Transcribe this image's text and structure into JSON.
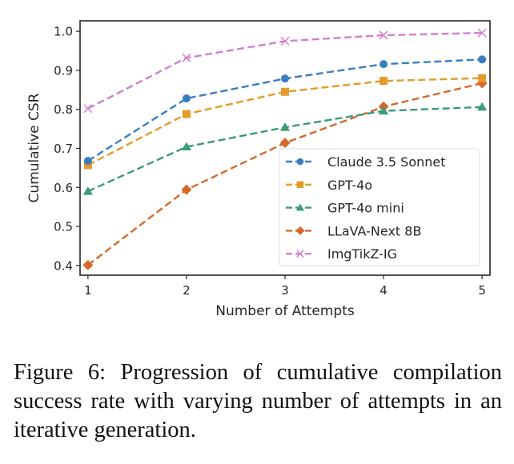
{
  "chart_data": {
    "type": "line",
    "title": "",
    "xlabel": "Number of Attempts",
    "ylabel": "Cumulative CSR",
    "x": [
      1,
      2,
      3,
      4,
      5
    ],
    "xticks": [
      "1",
      "2",
      "3",
      "4",
      "5"
    ],
    "yticks": [
      "0.4",
      "0.5",
      "0.6",
      "0.7",
      "0.8",
      "0.9",
      "1.0"
    ],
    "ytick_values": [
      0.4,
      0.5,
      0.6,
      0.7,
      0.8,
      0.9,
      1.0
    ],
    "xlim": [
      0.92,
      5.08
    ],
    "ylim": [
      0.375,
      1.027
    ],
    "grid": false,
    "legend_position": "lower-right",
    "series": [
      {
        "name": "Claude 3.5 Sonnet",
        "color": "#3a7dbf",
        "marker": "circle",
        "values": [
          0.668,
          0.828,
          0.879,
          0.916,
          0.928
        ]
      },
      {
        "name": "GPT-4o",
        "color": "#e39c2b",
        "marker": "square",
        "values": [
          0.657,
          0.788,
          0.845,
          0.873,
          0.88
        ]
      },
      {
        "name": "GPT-4o mini",
        "color": "#3a9c74",
        "marker": "triangle",
        "values": [
          0.59,
          0.704,
          0.754,
          0.796,
          0.806
        ]
      },
      {
        "name": "LLaVA-Next 8B",
        "color": "#d4692a",
        "marker": "diamond",
        "values": [
          0.401,
          0.594,
          0.714,
          0.807,
          0.867
        ]
      },
      {
        "name": "ImgTikZ-IG",
        "color": "#d27fcf",
        "marker": "x",
        "values": [
          0.802,
          0.932,
          0.975,
          0.99,
          0.996
        ]
      }
    ]
  },
  "caption": "Figure 6: Progression of cumulative compilation success rate with varying number of attempts in an iterative generation."
}
